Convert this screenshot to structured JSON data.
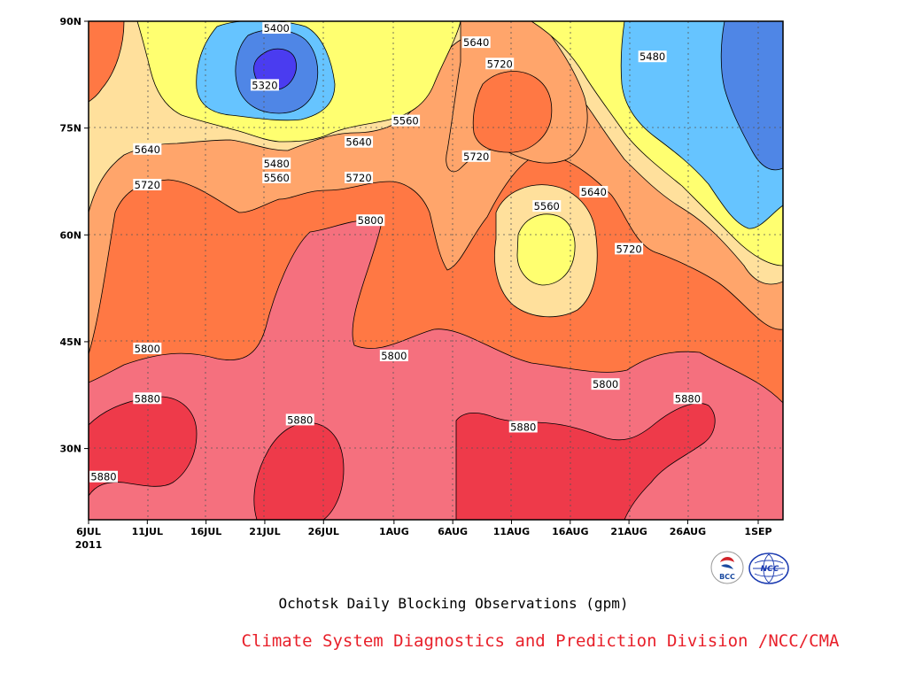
{
  "chart_data": {
    "type": "heatmap",
    "subtype": "filled-contour",
    "title": "Ochotsk Daily Blocking Observations (gpm)",
    "xlabel": "",
    "ylabel": "",
    "x_ticks": [
      "6JUL",
      "11JUL",
      "16JUL",
      "21JUL",
      "26JUL",
      "1AUG",
      "6AUG",
      "11AUG",
      "16AUG",
      "21AUG",
      "26AUG",
      "1SEP"
    ],
    "x_year": "2011",
    "y_ticks": [
      "90N",
      "75N",
      "60N",
      "45N",
      "30N"
    ],
    "ylim": [
      20,
      90
    ],
    "grid": true,
    "contour_levels": [
      5320,
      5400,
      5480,
      5560,
      5640,
      5720,
      5800,
      5880
    ],
    "fill_colors": {
      "below_5320": "#4a3cf0",
      "5320_5400": "#4f86e6",
      "5400_5480": "#66c4ff",
      "5480_5560": "#ffff70",
      "5560_5640": "#ffe09c",
      "5640_5720": "#ffa56b",
      "5720_5800": "#ff7844",
      "5800_5880": "#f5707e",
      "above_5880": "#ee3a4a"
    },
    "contour_labels": [
      {
        "text": "5400",
        "date": "22JUL",
        "lat": 89
      },
      {
        "text": "5320",
        "date": "21JUL",
        "lat": 81
      },
      {
        "text": "5480",
        "date": "22JUL",
        "lat": 70
      },
      {
        "text": "5560",
        "date": "22JUL",
        "lat": 68
      },
      {
        "text": "5640",
        "date": "11JUL",
        "lat": 72
      },
      {
        "text": "5720",
        "date": "11JUL",
        "lat": 67
      },
      {
        "text": "5640",
        "date": "29JUL",
        "lat": 73
      },
      {
        "text": "5720",
        "date": "29JUL",
        "lat": 68
      },
      {
        "text": "5560",
        "date": "2AUG",
        "lat": 76
      },
      {
        "text": "5800",
        "date": "30JUL",
        "lat": 62
      },
      {
        "text": "5640",
        "date": "8AUG",
        "lat": 87
      },
      {
        "text": "5720",
        "date": "10AUG",
        "lat": 84
      },
      {
        "text": "5720",
        "date": "8AUG",
        "lat": 71
      },
      {
        "text": "5560",
        "date": "14AUG",
        "lat": 64
      },
      {
        "text": "5640",
        "date": "18AUG",
        "lat": 66
      },
      {
        "text": "5720",
        "date": "21AUG",
        "lat": 58
      },
      {
        "text": "5480",
        "date": "23AUG",
        "lat": 85
      },
      {
        "text": "5800",
        "date": "11JUL",
        "lat": 44
      },
      {
        "text": "5800",
        "date": "1AUG",
        "lat": 43
      },
      {
        "text": "5800",
        "date": "19AUG",
        "lat": 39
      },
      {
        "text": "5880",
        "date": "11JUL",
        "lat": 37
      },
      {
        "text": "5880",
        "date": "24JUL",
        "lat": 34
      },
      {
        "text": "5880",
        "date": "12AUG",
        "lat": 33
      },
      {
        "text": "5880",
        "date": "26AUG",
        "lat": 37
      },
      {
        "text": "5880",
        "date": "7JUL",
        "lat": 26
      }
    ]
  },
  "logos": {
    "bcc": {
      "name": "bcc-logo",
      "text": "BCC"
    },
    "ncc": {
      "name": "ncc-logo",
      "text": "NCC"
    }
  },
  "credit": "Climate System Diagnostics and Prediction Division /NCC/CMA"
}
